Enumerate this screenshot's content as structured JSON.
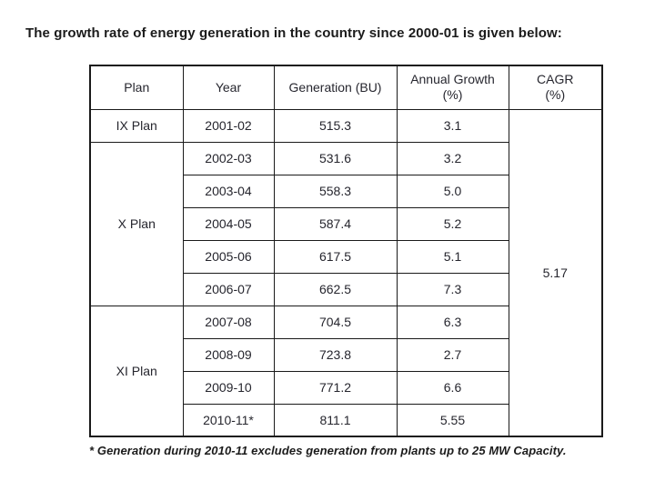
{
  "title": "The growth rate of energy generation in the country since 2000-01 is given below:",
  "table": {
    "headers": {
      "plan": "Plan",
      "year": "Year",
      "generation": "Generation (BU)",
      "annual_growth": "Annual Growth\n(%)",
      "cagr": "CAGR\n(%)"
    },
    "plans": [
      "IX Plan",
      "X Plan",
      "XI Plan"
    ],
    "rows": [
      {
        "year": "2001-02",
        "generation": "515.3",
        "growth": "3.1"
      },
      {
        "year": "2002-03",
        "generation": "531.6",
        "growth": "3.2"
      },
      {
        "year": "2003-04",
        "generation": "558.3",
        "growth": "5.0"
      },
      {
        "year": "2004-05",
        "generation": "587.4",
        "growth": "5.2"
      },
      {
        "year": "2005-06",
        "generation": "617.5",
        "growth": "5.1"
      },
      {
        "year": "2006-07",
        "generation": "662.5",
        "growth": "7.3"
      },
      {
        "year": "2007-08",
        "generation": "704.5",
        "growth": "6.3"
      },
      {
        "year": "2008-09",
        "generation": "723.8",
        "growth": "2.7"
      },
      {
        "year": "2009-10",
        "generation": "771.2",
        "growth": "6.6"
      },
      {
        "year": "2010-11*",
        "generation": "811.1",
        "growth": "5.55"
      }
    ],
    "cagr_value": "5.17"
  },
  "footnote": "* Generation during 2010-11 excludes generation from plants up to 25 MW Capacity.",
  "colors": {
    "background": "#ffffff",
    "text": "#26262e",
    "border": "#1a1a1a"
  }
}
